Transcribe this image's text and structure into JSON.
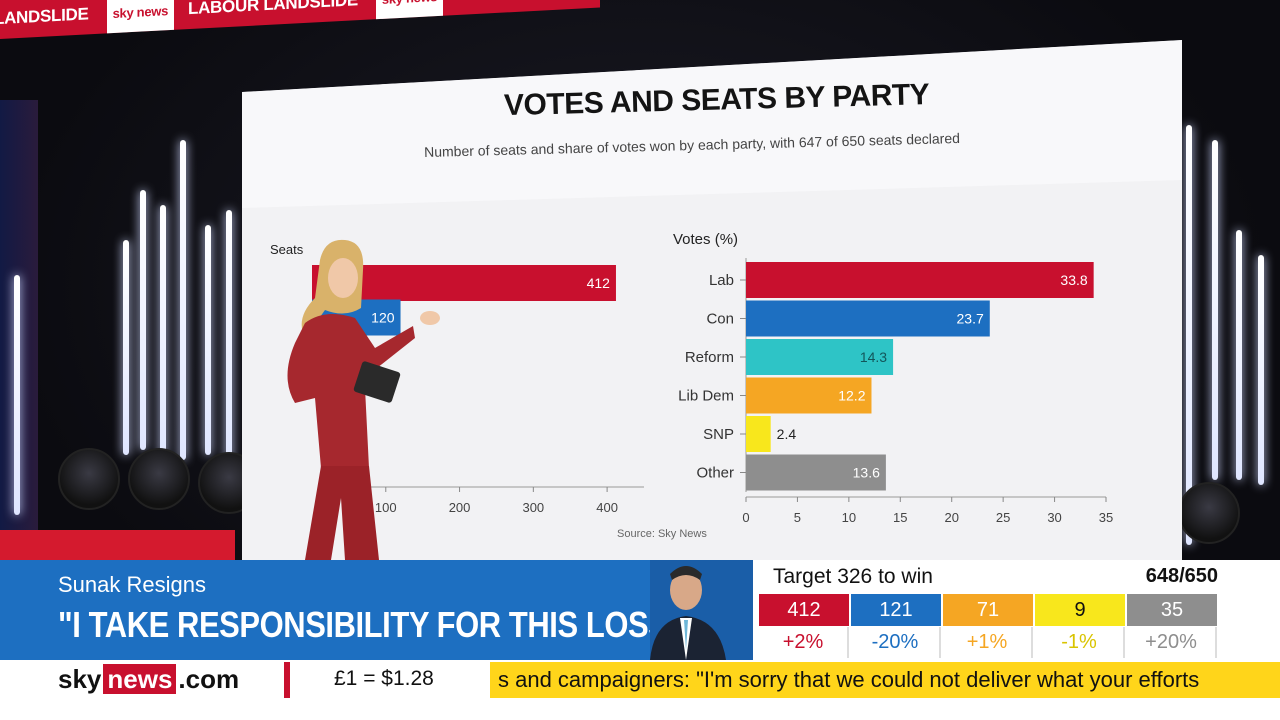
{
  "top_ribbon": {
    "items": [
      "LANDSLIDE",
      "sky news",
      "LABOUR LANDSLIDE",
      "sky news",
      "LABOUR"
    ]
  },
  "screen": {
    "title": "VOTES AND SEATS BY PARTY",
    "subtitle": "Number of seats and share of votes won by each party, with 647 of 650 seats declared",
    "source": "Source: Sky News"
  },
  "chart_data": [
    {
      "type": "bar",
      "orientation": "horizontal",
      "title": "Seats",
      "categories": [
        "Lab",
        "Con",
        "Reform",
        "Lib Dem",
        "SNP",
        "Other"
      ],
      "values": [
        412,
        120,
        null,
        null,
        null,
        null
      ],
      "visible_labels": [
        "412",
        "120"
      ],
      "xlim": [
        0,
        450
      ],
      "xticks": [
        100,
        200,
        300,
        400
      ],
      "colors": [
        "#c8102e",
        "#1d6fc1",
        "#2ec4c6",
        "#f5a623",
        "#f8e71c",
        "#8e8e8e"
      ]
    },
    {
      "type": "bar",
      "orientation": "horizontal",
      "title": "Votes (%)",
      "categories": [
        "Lab",
        "Con",
        "Reform",
        "Lib Dem",
        "SNP",
        "Other"
      ],
      "values": [
        33.8,
        23.7,
        14.3,
        12.2,
        2.4,
        13.6
      ],
      "labels": [
        "33.8",
        "23.7",
        "14.3",
        "12.2",
        "2.4",
        "13.6"
      ],
      "xlim": [
        0,
        35
      ],
      "xticks": [
        0,
        5,
        10,
        15,
        20,
        25,
        30,
        35
      ],
      "colors": [
        "#c8102e",
        "#1d6fc1",
        "#2ec4c6",
        "#f5a623",
        "#f8e71c",
        "#8e8e8e"
      ]
    }
  ],
  "lower_third": {
    "headline_top": "Sunak Resigns",
    "headline_main": "\"I TAKE RESPONSIBILITY FOR THIS LOSS\""
  },
  "results": {
    "target": "Target 326 to win",
    "declared": "648/650",
    "parties": [
      {
        "seats": "412",
        "change": "+2%",
        "color": "#c8102e",
        "change_color": "#c8102e"
      },
      {
        "seats": "121",
        "change": "-20%",
        "color": "#1d6fc1",
        "change_color": "#1d6fc1"
      },
      {
        "seats": "71",
        "change": "+1%",
        "color": "#f5a623",
        "change_color": "#f5a623"
      },
      {
        "seats": "9",
        "change": "-1%",
        "color": "#f8e71c",
        "change_color": "#d9c400"
      },
      {
        "seats": "35",
        "change": "+20%",
        "color": "#8e8e8e",
        "change_color": "#8e8e8e"
      }
    ]
  },
  "bottom": {
    "logo_sky": "sky",
    "logo_news": "news",
    "logo_com": ".com",
    "fx_rate": "£1 = $1.28",
    "ticker": "s and campaigners: \"I'm sorry that we could not deliver what your efforts"
  }
}
